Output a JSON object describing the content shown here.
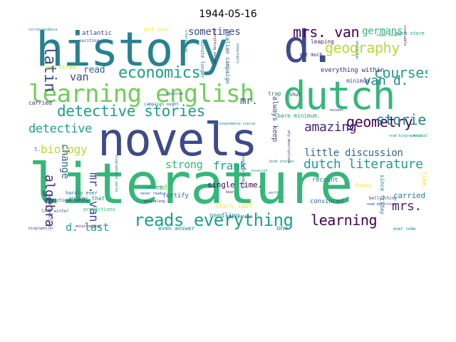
{
  "title": "1944-05-16",
  "palette": {
    "dark_purple": "#440154",
    "purple": "#482878",
    "indigo": "#3e4a89",
    "blue": "#31688e",
    "teal": "#26828e",
    "green_teal": "#1f9e89",
    "green": "#35b779",
    "lime": "#6ece58",
    "yellow_green": "#b5de2b",
    "yellow": "#fde725"
  },
  "words": [
    {
      "text": "literature",
      "color": "green"
    },
    {
      "text": "novels",
      "color": "indigo"
    },
    {
      "text": "history",
      "color": "teal"
    },
    {
      "text": "dutch",
      "color": "green"
    },
    {
      "text": "d.",
      "color": "indigo"
    },
    {
      "text": "learning english",
      "color": "lime"
    },
    {
      "text": "reads everything",
      "color": "green_teal"
    },
    {
      "text": "economics",
      "color": "green_teal"
    },
    {
      "text": "detective stories",
      "color": "green_teal"
    },
    {
      "text": "geography",
      "color": "yellow_green"
    },
    {
      "text": "mrs. van",
      "color": "dark_purple"
    },
    {
      "text": "geometry",
      "color": "dark_purple"
    },
    {
      "text": "dutch literature",
      "color": "green_teal"
    },
    {
      "text": "learning",
      "color": "dark_purple"
    },
    {
      "text": "stories",
      "color": "teal"
    },
    {
      "text": "courses",
      "color": "green_teal"
    },
    {
      "text": "van d.",
      "color": "teal"
    },
    {
      "text": "latin",
      "color": "indigo"
    },
    {
      "text": "detective",
      "color": "green_teal"
    },
    {
      "text": "biology",
      "color": "yellow_green"
    },
    {
      "text": "amazing",
      "color": "purple"
    },
    {
      "text": "frank",
      "color": "green_teal"
    },
    {
      "text": "strong",
      "color": "green"
    },
    {
      "text": "mr. van",
      "color": "indigo"
    },
    {
      "text": "algebra",
      "color": "purple"
    },
    {
      "text": "atlantic wall",
      "color": "yellow"
    },
    {
      "text": "mrs.",
      "color": "purple"
    },
    {
      "text": "d. last",
      "color": "green_teal"
    },
    {
      "text": "sometimes",
      "color": "indigo"
    },
    {
      "text": "germans",
      "color": "green"
    },
    {
      "text": "van",
      "color": "indigo"
    },
    {
      "text": "read",
      "color": "blue"
    },
    {
      "text": "mr.",
      "color": "indigo"
    },
    {
      "text": "little discussion",
      "color": "blue"
    },
    {
      "text": "change",
      "color": "blue"
    },
    {
      "text": "everything within",
      "color": "purple"
    },
    {
      "text": "convinced",
      "color": "blue"
    },
    {
      "text": "recount",
      "color": "teal"
    },
    {
      "text": "bare minimum.",
      "color": "green_teal"
    },
    {
      "text": "single time.",
      "color": "dark_purple"
    },
    {
      "text": "fortify",
      "color": "blue"
    },
    {
      "text": "answer that.",
      "color": "teal"
    },
    {
      "text": "carried away",
      "color": "teal"
    },
    {
      "text": "atlantic",
      "color": "indigo"
    },
    {
      "text": "minimum.",
      "color": "indigo"
    },
    {
      "text": "always keep",
      "color": "indigo"
    },
    {
      "text": "trap",
      "color": "teal"
    },
    {
      "text": "much store",
      "color": "green_teal"
    },
    {
      "text": "reads novels",
      "color": "teal"
    },
    {
      "text": "leaping",
      "color": "purple"
    },
    {
      "text": "set much",
      "color": "purple"
    },
    {
      "text": "italian campaign",
      "color": "blue"
    },
    {
      "text": "minute longer",
      "color": "teal"
    },
    {
      "text": "get tired",
      "color": "yellow_green"
    },
    {
      "text": "carried",
      "color": "purple"
    },
    {
      "text": "predictions hardly",
      "color": "purple"
    },
    {
      "text": "hardly ever",
      "color": "blue"
    },
    {
      "text": "last winter",
      "color": "blue"
    },
    {
      "text": "predictions",
      "color": "green"
    },
    {
      "text": "even answer",
      "color": "teal"
    },
    {
      "text": "one",
      "color": "teal"
    },
    {
      "text": "end",
      "color": "lime"
    },
    {
      "text": "lemberg",
      "color": "green_teal"
    },
    {
      "text": "stars last",
      "color": "yellow"
    },
    {
      "text": "needling",
      "color": "green_teal"
    },
    {
      "text": "since friday",
      "color": "teal"
    },
    {
      "text": "time.",
      "color": "yellow"
    },
    {
      "text": "act one",
      "color": "yellow"
    },
    {
      "text": "exciting",
      "color": "indigo"
    },
    {
      "text": "correspondence",
      "color": "teal"
    },
    {
      "text": "campaign ought",
      "color": "blue"
    },
    {
      "text": "ever come",
      "color": "teal"
    },
    {
      "text": "encyclopedia",
      "color": "purple"
    },
    {
      "text": "biographical",
      "color": "indigo"
    },
    {
      "text": "medical books",
      "color": "green_teal"
    },
    {
      "text": "read biographical",
      "color": "green_teal"
    },
    {
      "text": "invaluable",
      "color": "purple"
    },
    {
      "text": "bellyaching",
      "color": "indigo"
    },
    {
      "text": "funny",
      "color": "yellow"
    },
    {
      "text": "goes along",
      "color": "purple"
    },
    {
      "text": "takes serious",
      "color": "indigo"
    },
    {
      "text": "t.",
      "color": "teal"
    },
    {
      "text": "shut",
      "color": "purple"
    },
    {
      "text": "bear",
      "color": "purple"
    },
    {
      "text": "book stories",
      "color": "teal"
    },
    {
      "text": "rather dry",
      "color": "purple"
    },
    {
      "text": "never ready",
      "color": "indigo"
    },
    {
      "text": "everything except",
      "color": "purple"
    },
    {
      "text": "interesting",
      "color": "teal"
    },
    {
      "text": "yesterday",
      "color": "blue"
    },
    {
      "text": "correspondence course",
      "color": "teal"
    },
    {
      "text": "dry descriptions",
      "color": "purple"
    },
    {
      "text": "invasion",
      "color": "green_teal"
    },
    {
      "text": "biographical works",
      "color": "teal"
    },
    {
      "text": "except detective",
      "color": "indigo"
    },
    {
      "text": "remarkable",
      "color": "teal"
    },
    {
      "text": "read detective",
      "color": "indigo"
    },
    {
      "text": "conquered lemberg",
      "color": "blue"
    },
    {
      "text": "decision",
      "color": "indigo"
    },
    {
      "text": "worth",
      "color": "blue"
    },
    {
      "text": "recount",
      "color": "purple"
    }
  ]
}
